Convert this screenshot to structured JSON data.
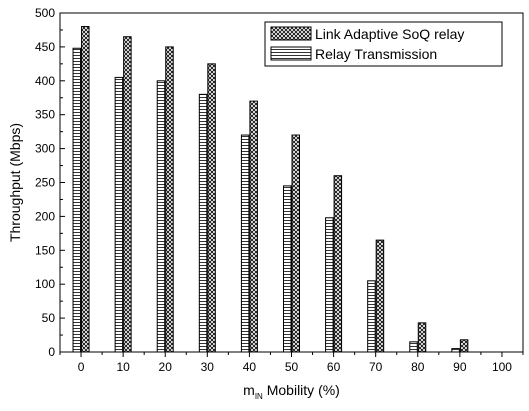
{
  "chart_data": {
    "type": "bar",
    "xlabel": {
      "main": "m",
      "sub": "IN",
      "rest": " Mobility (%)"
    },
    "ylabel": "Throughput (Mbps)",
    "ylim": [
      0,
      500
    ],
    "yticks": [
      0,
      50,
      100,
      150,
      200,
      250,
      300,
      350,
      400,
      450,
      500
    ],
    "xlim": [
      -5,
      105
    ],
    "xticks": [
      0,
      10,
      20,
      30,
      40,
      50,
      60,
      70,
      80,
      90,
      100
    ],
    "categories": [
      0,
      10,
      20,
      30,
      40,
      50,
      60,
      70,
      80,
      90,
      100
    ],
    "legend_position": "top-right",
    "series": [
      {
        "name": "Link Adaptive SoQ relay",
        "pattern": "crosshatch",
        "values": [
          480,
          465,
          450,
          425,
          370,
          320,
          260,
          165,
          43,
          18,
          0
        ]
      },
      {
        "name": "Relay Transmission",
        "pattern": "horizontal",
        "values": [
          448,
          405,
          400,
          380,
          320,
          245,
          198,
          105,
          15,
          5,
          0
        ]
      }
    ]
  }
}
